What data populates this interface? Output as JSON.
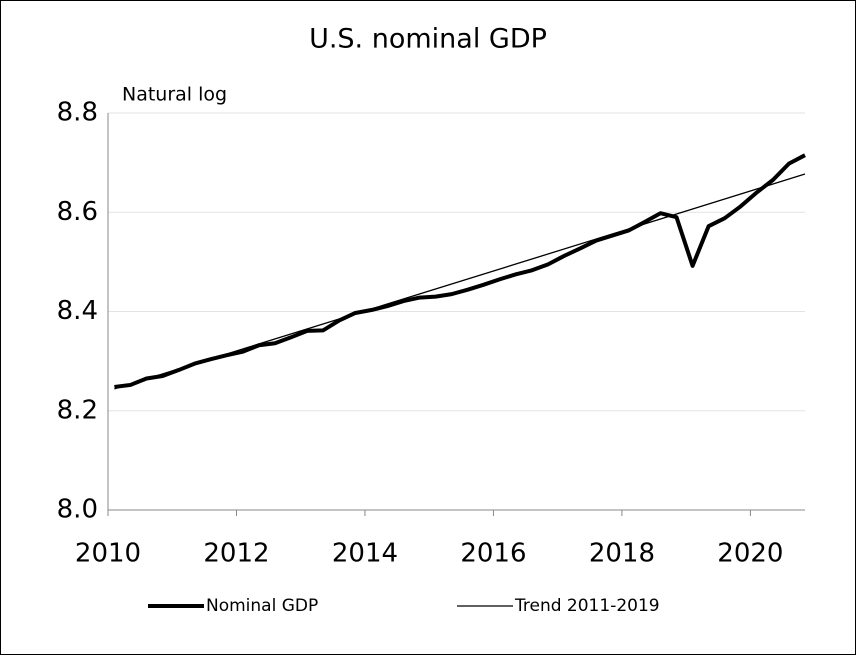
{
  "chart_data": {
    "type": "line",
    "title": "U.S. nominal GDP",
    "y_label": "Natural log",
    "series": [
      {
        "name": "Nominal GDP",
        "color": "#000000",
        "width": 4,
        "x": [
          2010.1,
          2010.35,
          2010.6,
          2010.85,
          2011.1,
          2011.35,
          2011.6,
          2011.85,
          2012.1,
          2012.35,
          2012.6,
          2012.85,
          2013.1,
          2013.35,
          2013.6,
          2013.85,
          2014.1,
          2014.35,
          2014.6,
          2014.85,
          2015.1,
          2015.35,
          2015.6,
          2015.85,
          2016.1,
          2016.35,
          2016.6,
          2016.85,
          2017.1,
          2017.35,
          2017.6,
          2017.85,
          2018.1,
          2018.35,
          2018.6,
          2018.85,
          2019.1,
          2019.35,
          2019.6,
          2019.85,
          2020.1,
          2020.35,
          2020.6,
          2020.85
        ],
        "values": [
          8.248,
          8.252,
          8.265,
          8.27,
          8.282,
          8.295,
          8.304,
          8.312,
          8.319,
          8.332,
          8.336,
          8.348,
          8.361,
          8.362,
          8.382,
          8.397,
          8.403,
          8.411,
          8.421,
          8.428,
          8.43,
          8.435,
          8.444,
          8.454,
          8.465,
          8.475,
          8.483,
          8.495,
          8.512,
          8.527,
          8.543,
          8.553,
          8.563,
          8.58,
          8.598,
          8.59,
          8.492,
          8.572,
          8.588,
          8.612,
          8.64,
          8.665,
          8.698,
          8.715
        ]
      },
      {
        "name": "Trend 2011-2019",
        "color": "#000000",
        "width": 1.3,
        "x": [
          2010.1,
          2020.85
        ],
        "values": [
          8.244,
          8.677
        ]
      }
    ],
    "xlim": [
      2010,
      2020.85
    ],
    "xticks": [
      2010,
      2012,
      2014,
      2016,
      2018,
      2020
    ],
    "ylim": [
      8.0,
      8.8
    ],
    "yticks": [
      {
        "value": 8.0,
        "label": "8.0"
      },
      8.2,
      8.4,
      8.6,
      8.8
    ],
    "grid": true,
    "legend": "bottom"
  }
}
